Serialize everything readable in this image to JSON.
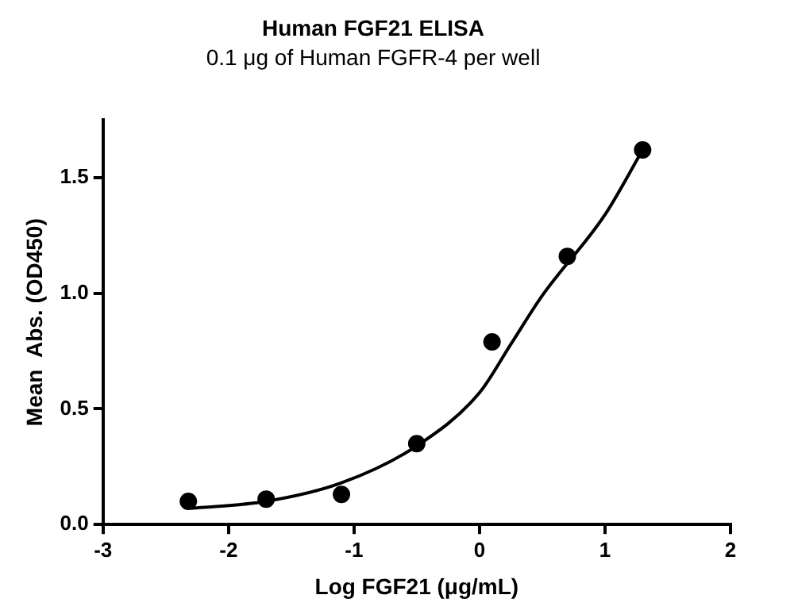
{
  "chart_data": {
    "type": "scatter",
    "title": "Human FGF21 ELISA",
    "subtitle": "0.1 μg of Human FGFR-4 per well",
    "xlabel": "Log FGF21 (μg/mL)",
    "ylabel": "Mean  Abs. (OD450)",
    "xlim": [
      -3,
      2
    ],
    "xticks": [
      -3,
      -2,
      -1,
      0,
      1,
      2
    ],
    "ylim": [
      0,
      1.75
    ],
    "yticks": [
      {
        "value": 0,
        "label": "0.0"
      },
      {
        "value": 0.5,
        "label": "0.5"
      },
      {
        "value": 1,
        "label": "1.0"
      },
      {
        "value": 1.5,
        "label": "1.5"
      }
    ],
    "grid": false,
    "legend": false,
    "series": [
      {
        "type": "scatter",
        "color": "#000000",
        "marker": "circle",
        "x": [
          -2.32,
          -1.7,
          -1.1,
          -0.5,
          0.1,
          0.7,
          1.3
        ],
        "values": [
          0.1,
          0.11,
          0.13,
          0.35,
          0.79,
          1.16,
          1.62
        ]
      },
      {
        "type": "line",
        "color": "#000000",
        "marker": "none",
        "line_style": "solid",
        "x": [
          -2.3,
          -1.7,
          -1.1,
          -0.5,
          0,
          0.25,
          0.5,
          1,
          1.3
        ],
        "values": [
          0.07,
          0.1,
          0.18,
          0.34,
          0.57,
          0.78,
          0.99,
          1.34,
          1.62
        ]
      }
    ]
  }
}
